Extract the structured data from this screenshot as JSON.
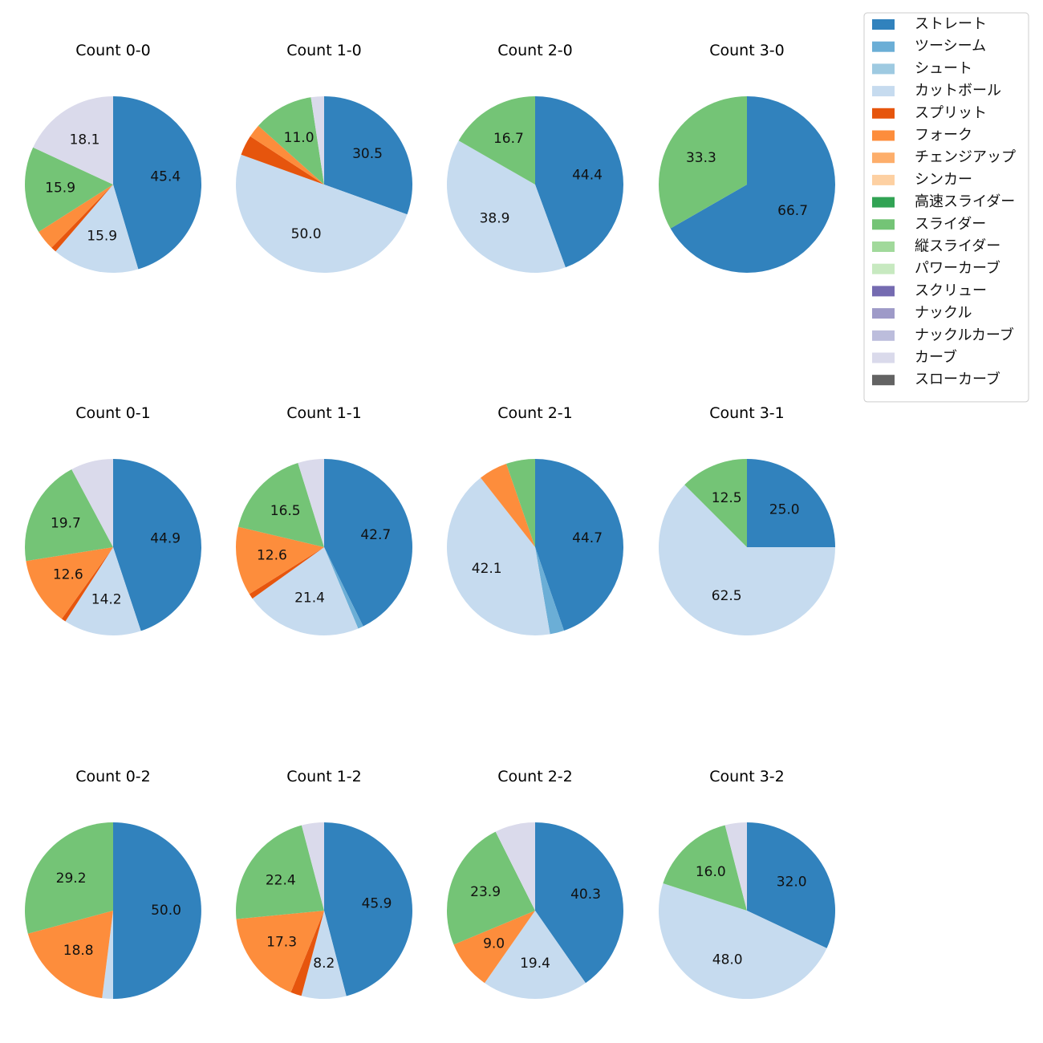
{
  "legend": {
    "placement": "top-right",
    "items": [
      {
        "label": "ストレート",
        "color": "#3182bd"
      },
      {
        "label": "ツーシーム",
        "color": "#6baed6"
      },
      {
        "label": "シュート",
        "color": "#9ecae1"
      },
      {
        "label": "カットボール",
        "color": "#c6dbef"
      },
      {
        "label": "スプリット",
        "color": "#e6550d"
      },
      {
        "label": "フォーク",
        "color": "#fd8d3c"
      },
      {
        "label": "チェンジアップ",
        "color": "#fdae6b"
      },
      {
        "label": "シンカー",
        "color": "#fdd0a2"
      },
      {
        "label": "高速スライダー",
        "color": "#31a354"
      },
      {
        "label": "スライダー",
        "color": "#74c476"
      },
      {
        "label": "縦スライダー",
        "color": "#a1d99b"
      },
      {
        "label": "パワーカーブ",
        "color": "#c7e9c0"
      },
      {
        "label": "スクリュー",
        "color": "#756bb1"
      },
      {
        "label": "ナックル",
        "color": "#9e9ac8"
      },
      {
        "label": "ナックルカーブ",
        "color": "#bcbddc"
      },
      {
        "label": "カーブ",
        "color": "#dadaeb"
      },
      {
        "label": "スローカーブ",
        "color": "#636363"
      }
    ]
  },
  "chart_data": [
    {
      "type": "pie",
      "title": "Count 0-0",
      "slices": [
        {
          "category": "ストレート",
          "value": 45.4,
          "label": "45.4"
        },
        {
          "category": "カットボール",
          "value": 15.9,
          "label": "15.9"
        },
        {
          "category": "スプリット",
          "value": 1.0,
          "label": ""
        },
        {
          "category": "フォーク",
          "value": 3.7,
          "label": ""
        },
        {
          "category": "スライダー",
          "value": 15.9,
          "label": "15.9"
        },
        {
          "category": "カーブ",
          "value": 18.1,
          "label": "18.1"
        }
      ]
    },
    {
      "type": "pie",
      "title": "Count 1-0",
      "slices": [
        {
          "category": "ストレート",
          "value": 30.5,
          "label": "30.5"
        },
        {
          "category": "カットボール",
          "value": 50.0,
          "label": "50.0"
        },
        {
          "category": "スプリット",
          "value": 3.7,
          "label": ""
        },
        {
          "category": "フォーク",
          "value": 2.4,
          "label": ""
        },
        {
          "category": "スライダー",
          "value": 11.0,
          "label": "11.0"
        },
        {
          "category": "カーブ",
          "value": 2.4,
          "label": ""
        }
      ]
    },
    {
      "type": "pie",
      "title": "Count 2-0",
      "slices": [
        {
          "category": "ストレート",
          "value": 44.4,
          "label": "44.4"
        },
        {
          "category": "カットボール",
          "value": 38.9,
          "label": "38.9"
        },
        {
          "category": "スライダー",
          "value": 16.7,
          "label": "16.7"
        }
      ]
    },
    {
      "type": "pie",
      "title": "Count 3-0",
      "slices": [
        {
          "category": "ストレート",
          "value": 66.7,
          "label": "66.7"
        },
        {
          "category": "スライダー",
          "value": 33.3,
          "label": "33.3"
        }
      ]
    },
    {
      "type": "pie",
      "title": "Count 0-1",
      "slices": [
        {
          "category": "ストレート",
          "value": 44.9,
          "label": "44.9"
        },
        {
          "category": "カットボール",
          "value": 14.2,
          "label": "14.2"
        },
        {
          "category": "スプリット",
          "value": 0.8,
          "label": ""
        },
        {
          "category": "フォーク",
          "value": 12.6,
          "label": "12.6"
        },
        {
          "category": "スライダー",
          "value": 19.7,
          "label": "19.7"
        },
        {
          "category": "カーブ",
          "value": 7.8,
          "label": ""
        }
      ]
    },
    {
      "type": "pie",
      "title": "Count 1-1",
      "slices": [
        {
          "category": "ストレート",
          "value": 42.7,
          "label": "42.7"
        },
        {
          "category": "ツーシーム",
          "value": 1.0,
          "label": ""
        },
        {
          "category": "カットボール",
          "value": 21.4,
          "label": "21.4"
        },
        {
          "category": "スプリット",
          "value": 1.0,
          "label": ""
        },
        {
          "category": "フォーク",
          "value": 12.6,
          "label": "12.6"
        },
        {
          "category": "スライダー",
          "value": 16.5,
          "label": "16.5"
        },
        {
          "category": "カーブ",
          "value": 4.8,
          "label": ""
        }
      ]
    },
    {
      "type": "pie",
      "title": "Count 2-1",
      "slices": [
        {
          "category": "ストレート",
          "value": 44.7,
          "label": "44.7"
        },
        {
          "category": "ツーシーム",
          "value": 2.6,
          "label": ""
        },
        {
          "category": "カットボール",
          "value": 42.1,
          "label": "42.1"
        },
        {
          "category": "フォーク",
          "value": 5.3,
          "label": ""
        },
        {
          "category": "スライダー",
          "value": 5.3,
          "label": ""
        }
      ]
    },
    {
      "type": "pie",
      "title": "Count 3-1",
      "slices": [
        {
          "category": "ストレート",
          "value": 25.0,
          "label": "25.0"
        },
        {
          "category": "カットボール",
          "value": 62.5,
          "label": "62.5"
        },
        {
          "category": "スライダー",
          "value": 12.5,
          "label": "12.5"
        }
      ]
    },
    {
      "type": "pie",
      "title": "Count 0-2",
      "slices": [
        {
          "category": "ストレート",
          "value": 50.0,
          "label": "50.0"
        },
        {
          "category": "カットボール",
          "value": 2.0,
          "label": ""
        },
        {
          "category": "フォーク",
          "value": 18.8,
          "label": "18.8"
        },
        {
          "category": "スライダー",
          "value": 29.2,
          "label": "29.2"
        }
      ]
    },
    {
      "type": "pie",
      "title": "Count 1-2",
      "slices": [
        {
          "category": "ストレート",
          "value": 45.9,
          "label": "45.9"
        },
        {
          "category": "カットボール",
          "value": 8.2,
          "label": "8.2"
        },
        {
          "category": "スプリット",
          "value": 2.0,
          "label": ""
        },
        {
          "category": "フォーク",
          "value": 17.3,
          "label": "17.3"
        },
        {
          "category": "スライダー",
          "value": 22.4,
          "label": "22.4"
        },
        {
          "category": "カーブ",
          "value": 4.1,
          "label": ""
        }
      ]
    },
    {
      "type": "pie",
      "title": "Count 2-2",
      "slices": [
        {
          "category": "ストレート",
          "value": 40.3,
          "label": "40.3"
        },
        {
          "category": "カットボール",
          "value": 19.4,
          "label": "19.4"
        },
        {
          "category": "フォーク",
          "value": 9.0,
          "label": "9.0"
        },
        {
          "category": "スライダー",
          "value": 23.9,
          "label": "23.9"
        },
        {
          "category": "カーブ",
          "value": 7.4,
          "label": ""
        }
      ]
    },
    {
      "type": "pie",
      "title": "Count 3-2",
      "slices": [
        {
          "category": "ストレート",
          "value": 32.0,
          "label": "32.0"
        },
        {
          "category": "カットボール",
          "value": 48.0,
          "label": "48.0"
        },
        {
          "category": "スライダー",
          "value": 16.0,
          "label": "16.0"
        },
        {
          "category": "カーブ",
          "value": 4.0,
          "label": ""
        }
      ]
    }
  ]
}
